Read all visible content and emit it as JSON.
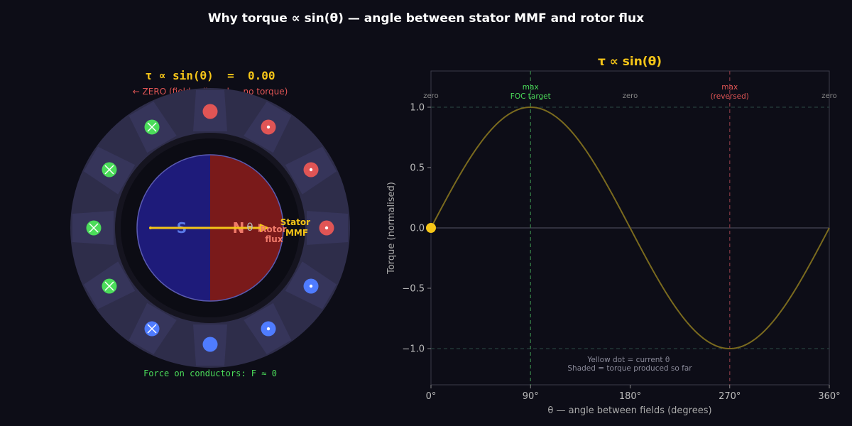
{
  "title": "Why torque ∝ sin(θ) — angle between stator MMF and rotor flux",
  "motor": {
    "readout": "τ ∝ sin(θ)  =  0.00",
    "status": "← ZERO (fields aligned — no torque)",
    "force": "Force on conductors: F ≈ 0",
    "south_label": "S",
    "north_label": "N",
    "theta_label": "θ",
    "rotor_flux_label": [
      "Rotor",
      "flux"
    ],
    "stator_mmf_label": [
      "Stator",
      "MMF"
    ],
    "colors": {
      "rotor_south": "#1e1b7a",
      "rotor_north": "#7a1a1a",
      "stator": "#2e2d4a",
      "arrow": "#f5c518",
      "current_out": "#e05555",
      "current_in": "#4bdc5a",
      "current_blue": "#4f7cff"
    },
    "conductors": [
      {
        "slot": 0,
        "symbol": "out-large",
        "color": "#e05555"
      },
      {
        "slot": 1,
        "symbol": "dot",
        "color": "#e05555"
      },
      {
        "slot": 2,
        "symbol": "dot",
        "color": "#e05555"
      },
      {
        "slot": 3,
        "symbol": "dot",
        "color": "#e05555"
      },
      {
        "slot": 4,
        "symbol": "dot",
        "color": "#4f7cff"
      },
      {
        "slot": 5,
        "symbol": "dot",
        "color": "#4f7cff"
      },
      {
        "slot": 6,
        "symbol": "out-large",
        "color": "#4f7cff"
      },
      {
        "slot": 7,
        "symbol": "cross",
        "color": "#4f7cff"
      },
      {
        "slot": 8,
        "symbol": "cross",
        "color": "#4bdc5a"
      },
      {
        "slot": 9,
        "symbol": "cross",
        "color": "#4bdc5a"
      },
      {
        "slot": 10,
        "symbol": "cross",
        "color": "#4bdc5a"
      },
      {
        "slot": 11,
        "symbol": "cross",
        "color": "#4bdc5a"
      }
    ]
  },
  "chart_data": {
    "type": "line",
    "title": "τ ∝ sin(θ)",
    "xlabel": "θ — angle between fields (degrees)",
    "ylabel": "Torque (normalised)",
    "xlim": [
      0,
      360
    ],
    "ylim": [
      -1.3,
      1.3
    ],
    "xticks": [
      0,
      90,
      180,
      270,
      360
    ],
    "xtick_labels": [
      "0°",
      "90°",
      "180°",
      "270°",
      "360°"
    ],
    "yticks": [
      1.0,
      0.5,
      0.0,
      -0.5,
      -1.0
    ],
    "ytick_labels": [
      "1.0",
      "0.5",
      "0.0",
      "−0.5",
      "−1.0"
    ],
    "series": [
      {
        "function": "sin",
        "x_start": 0,
        "x_end": 360,
        "color": "#7a6a1e"
      }
    ],
    "current_point": {
      "x": 0,
      "y": 0.0,
      "color": "#f5c518"
    },
    "vlines": [
      {
        "x": 90,
        "color": "#2f6b3f",
        "top_label": [
          "max",
          "FOC target"
        ],
        "label_color": "#4bdc5a"
      },
      {
        "x": 270,
        "color": "#6b2f3a",
        "top_label": [
          "max",
          "(reversed)"
        ],
        "label_color": "#e05555"
      }
    ],
    "hlines": [
      {
        "y": 1.0,
        "color": "#2a4a44"
      },
      {
        "y": -1.0,
        "color": "#2a4a44"
      },
      {
        "y": 0.0,
        "color": "#555566"
      }
    ],
    "zero_labels": [
      {
        "x": 0,
        "text": "zero"
      },
      {
        "x": 180,
        "text": "zero"
      },
      {
        "x": 360,
        "text": "zero"
      }
    ],
    "note": [
      "Yellow dot = current θ",
      "Shaded = torque produced so far"
    ],
    "colors": {
      "title": "#f5c518",
      "axis": "#3a3a4a",
      "tick_text": "#bbbbbb",
      "label_text": "#aaaaaa",
      "zero_text": "#888888"
    }
  }
}
